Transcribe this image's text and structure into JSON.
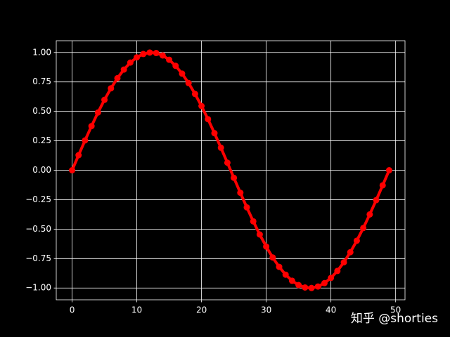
{
  "chart_data": {
    "type": "line",
    "x": [
      0,
      1,
      2,
      3,
      4,
      5,
      6,
      7,
      8,
      9,
      10,
      11,
      12,
      13,
      14,
      15,
      16,
      17,
      18,
      19,
      20,
      21,
      22,
      23,
      24,
      25,
      26,
      27,
      28,
      29,
      30,
      31,
      32,
      33,
      34,
      35,
      36,
      37,
      38,
      39,
      40,
      41,
      42,
      43,
      44,
      45,
      46,
      47,
      48,
      49
    ],
    "series": [
      {
        "color": "#ff0000",
        "values": [
          0,
          0.1279,
          0.2537,
          0.3752,
          0.4907,
          0.5981,
          0.6959,
          0.7818,
          0.8551,
          0.9144,
          0.9587,
          0.9872,
          0.9995,
          0.9954,
          0.9749,
          0.9385,
          0.8867,
          0.8203,
          0.7406,
          0.6482,
          0.5455,
          0.4339,
          0.3151,
          0.1912,
          0.0641,
          -0.0641,
          -0.1912,
          -0.3151,
          -0.4339,
          -0.5455,
          -0.6482,
          -0.7406,
          -0.8203,
          -0.8867,
          -0.9385,
          -0.9749,
          -0.9954,
          -0.9995,
          -0.9872,
          -0.9587,
          -0.9144,
          -0.8551,
          -0.7818,
          -0.6959,
          -0.5981,
          -0.4907,
          -0.3752,
          -0.2537,
          -0.1279,
          0
        ]
      }
    ],
    "xlim": [
      -2.45,
      51.45
    ],
    "xticks": [
      0,
      10,
      20,
      30,
      40,
      50
    ],
    "ylim": [
      -1.1,
      1.1
    ],
    "yticks": [
      {
        "value": -1,
        "label": "−1.00"
      },
      {
        "value": -0.75,
        "label": "−0.75"
      },
      {
        "value": -0.5,
        "label": "−0.50"
      },
      {
        "value": -0.25,
        "label": "−0.25"
      },
      {
        "value": 0,
        "label": "0.00"
      },
      {
        "value": 0.25,
        "label": "0.25"
      },
      {
        "value": 0.5,
        "label": "0.50"
      },
      {
        "value": 0.75,
        "label": "0.75"
      },
      {
        "value": 1,
        "label": "1.00"
      }
    ],
    "grid": true,
    "watermark": "知乎 @shorties"
  }
}
